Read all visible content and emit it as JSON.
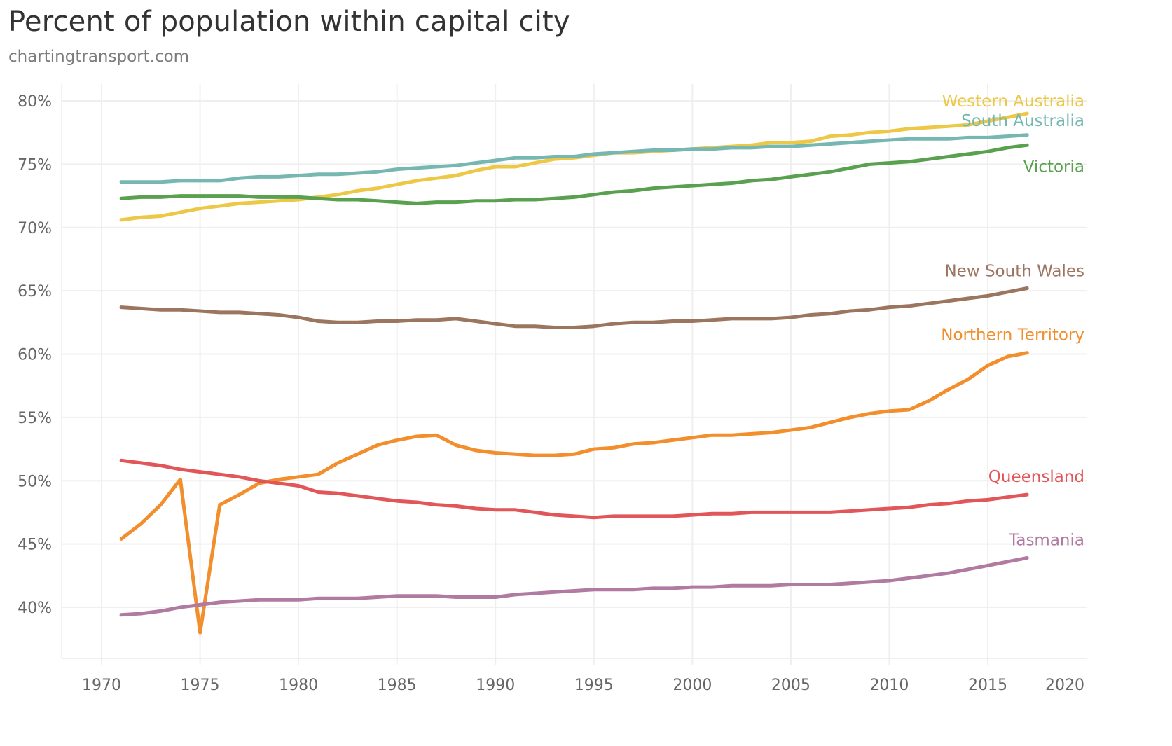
{
  "header": {
    "title": "Percent of population within capital city",
    "subtitle": "chartingtransport.com"
  },
  "chart_data": {
    "type": "line",
    "title": "Percent of population within capital city",
    "subtitle": "chartingtransport.com",
    "xlabel": "",
    "ylabel": "",
    "xlim": [
      1968,
      2021
    ],
    "ylim": [
      36.2,
      81.5
    ],
    "x_ticks": [
      1970,
      1975,
      1980,
      1985,
      1990,
      1995,
      2000,
      2005,
      2010,
      2015,
      2020
    ],
    "x_tick_labels": [
      "1970",
      "1975",
      "1980",
      "1985",
      "1990",
      "1995",
      "2000",
      "2005",
      "2010",
      "2015",
      "2020"
    ],
    "y_ticks": [
      40,
      45,
      50,
      55,
      60,
      65,
      70,
      75,
      80
    ],
    "y_tick_labels": [
      "40%",
      "45%",
      "50%",
      "55%",
      "60%",
      "65%",
      "70%",
      "75%",
      "80%"
    ],
    "grid": true,
    "legend": "direct labels at right end of lines",
    "x": [
      1971,
      1972,
      1973,
      1974,
      1975,
      1976,
      1977,
      1978,
      1979,
      1980,
      1981,
      1982,
      1983,
      1984,
      1985,
      1986,
      1987,
      1988,
      1989,
      1990,
      1991,
      1992,
      1993,
      1994,
      1995,
      1996,
      1997,
      1998,
      1999,
      2000,
      2001,
      2002,
      2003,
      2004,
      2005,
      2006,
      2007,
      2008,
      2009,
      2010,
      2011,
      2012,
      2013,
      2014,
      2015,
      2016,
      2017
    ],
    "series": [
      {
        "name": "Western Australia",
        "color": "#ecc846",
        "values": [
          70.6,
          70.8,
          70.9,
          71.2,
          71.5,
          71.7,
          71.9,
          72.0,
          72.1,
          72.2,
          72.4,
          72.6,
          72.9,
          73.1,
          73.4,
          73.7,
          73.9,
          74.1,
          74.5,
          74.8,
          74.8,
          75.1,
          75.4,
          75.5,
          75.7,
          75.9,
          75.9,
          76.0,
          76.1,
          76.2,
          76.3,
          76.4,
          76.5,
          76.7,
          76.7,
          76.8,
          77.2,
          77.3,
          77.5,
          77.6,
          77.8,
          77.9,
          78.0,
          78.1,
          78.4,
          78.7,
          79.0
        ]
      },
      {
        "name": "South Australia",
        "color": "#76b7b2",
        "values": [
          73.6,
          73.6,
          73.6,
          73.7,
          73.7,
          73.7,
          73.9,
          74.0,
          74.0,
          74.1,
          74.2,
          74.2,
          74.3,
          74.4,
          74.6,
          74.7,
          74.8,
          74.9,
          75.1,
          75.3,
          75.5,
          75.5,
          75.6,
          75.6,
          75.8,
          75.9,
          76.0,
          76.1,
          76.1,
          76.2,
          76.2,
          76.3,
          76.3,
          76.4,
          76.4,
          76.5,
          76.6,
          76.7,
          76.8,
          76.9,
          77.0,
          77.0,
          77.0,
          77.1,
          77.1,
          77.2,
          77.3
        ]
      },
      {
        "name": "Victoria",
        "color": "#59a14f",
        "values": [
          72.3,
          72.4,
          72.4,
          72.5,
          72.5,
          72.5,
          72.5,
          72.4,
          72.4,
          72.4,
          72.3,
          72.2,
          72.2,
          72.1,
          72.0,
          71.9,
          72.0,
          72.0,
          72.1,
          72.1,
          72.2,
          72.2,
          72.3,
          72.4,
          72.6,
          72.8,
          72.9,
          73.1,
          73.2,
          73.3,
          73.4,
          73.5,
          73.7,
          73.8,
          74.0,
          74.2,
          74.4,
          74.7,
          75.0,
          75.1,
          75.2,
          75.4,
          75.6,
          75.8,
          76.0,
          76.3,
          76.5
        ]
      },
      {
        "name": "New South Wales",
        "color": "#9c755f",
        "values": [
          63.7,
          63.6,
          63.5,
          63.5,
          63.4,
          63.3,
          63.3,
          63.2,
          63.1,
          62.9,
          62.6,
          62.5,
          62.5,
          62.6,
          62.6,
          62.7,
          62.7,
          62.8,
          62.6,
          62.4,
          62.2,
          62.2,
          62.1,
          62.1,
          62.2,
          62.4,
          62.5,
          62.5,
          62.6,
          62.6,
          62.7,
          62.8,
          62.8,
          62.8,
          62.9,
          63.1,
          63.2,
          63.4,
          63.5,
          63.7,
          63.8,
          64.0,
          64.2,
          64.4,
          64.6,
          64.9,
          65.2
        ]
      },
      {
        "name": "Northern Territory",
        "color": "#f28e2b",
        "values": [
          45.4,
          46.6,
          48.1,
          50.1,
          38.0,
          48.1,
          48.9,
          49.8,
          50.1,
          50.3,
          50.5,
          51.4,
          52.1,
          52.8,
          53.2,
          53.5,
          53.6,
          52.8,
          52.4,
          52.2,
          52.1,
          52.0,
          52.0,
          52.1,
          52.5,
          52.6,
          52.9,
          53.0,
          53.2,
          53.4,
          53.6,
          53.6,
          53.7,
          53.8,
          54.0,
          54.2,
          54.6,
          55.0,
          55.3,
          55.5,
          55.6,
          56.3,
          57.2,
          58.0,
          59.1,
          59.8,
          60.1
        ]
      },
      {
        "name": "Queensland",
        "color": "#e15759",
        "values": [
          51.6,
          51.4,
          51.2,
          50.9,
          50.7,
          50.5,
          50.3,
          50.0,
          49.8,
          49.6,
          49.1,
          49.0,
          48.8,
          48.6,
          48.4,
          48.3,
          48.1,
          48.0,
          47.8,
          47.7,
          47.7,
          47.5,
          47.3,
          47.2,
          47.1,
          47.2,
          47.2,
          47.2,
          47.2,
          47.3,
          47.4,
          47.4,
          47.5,
          47.5,
          47.5,
          47.5,
          47.5,
          47.6,
          47.7,
          47.8,
          47.9,
          48.1,
          48.2,
          48.4,
          48.5,
          48.7,
          48.9
        ]
      },
      {
        "name": "Tasmania",
        "color": "#b07aa1",
        "values": [
          39.4,
          39.5,
          39.7,
          40.0,
          40.2,
          40.4,
          40.5,
          40.6,
          40.6,
          40.6,
          40.7,
          40.7,
          40.7,
          40.8,
          40.9,
          40.9,
          40.9,
          40.8,
          40.8,
          40.8,
          41.0,
          41.1,
          41.2,
          41.3,
          41.4,
          41.4,
          41.4,
          41.5,
          41.5,
          41.6,
          41.6,
          41.7,
          41.7,
          41.7,
          41.8,
          41.8,
          41.8,
          41.9,
          42.0,
          42.1,
          42.3,
          42.5,
          42.7,
          43.0,
          43.3,
          43.6,
          43.9
        ]
      }
    ]
  }
}
